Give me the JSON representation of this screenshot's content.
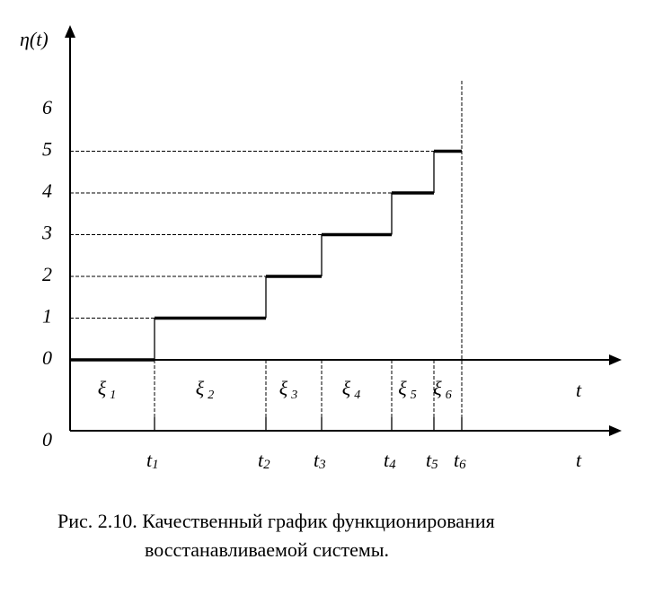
{
  "y_axis_label": "η(t)",
  "x_axis_label": "t",
  "lower_axis_origin": "0",
  "lower_axis_label": "t",
  "yticks": [
    0,
    1,
    2,
    3,
    4,
    5,
    6
  ],
  "steps": [
    {
      "level": 0,
      "symbol": "ξ",
      "sub": "1"
    },
    {
      "level": 1,
      "symbol": "ξ",
      "sub": "2"
    },
    {
      "level": 2,
      "symbol": "ξ",
      "sub": "3"
    },
    {
      "level": 3,
      "symbol": "ξ",
      "sub": "4"
    },
    {
      "level": 4,
      "symbol": "ξ",
      "sub": "5"
    },
    {
      "level": 5,
      "symbol": "ξ",
      "sub": "6"
    }
  ],
  "times": [
    {
      "symbol": "t",
      "sub": "1"
    },
    {
      "symbol": "t",
      "sub": "2"
    },
    {
      "symbol": "t",
      "sub": "3"
    },
    {
      "symbol": "t",
      "sub": "4"
    },
    {
      "symbol": "t",
      "sub": "5"
    },
    {
      "symbol": "t",
      "sub": "6"
    }
  ],
  "caption": [
    "Рис. 2.10. Качественный график функционирования",
    "восстанавливаемой системы."
  ]
}
